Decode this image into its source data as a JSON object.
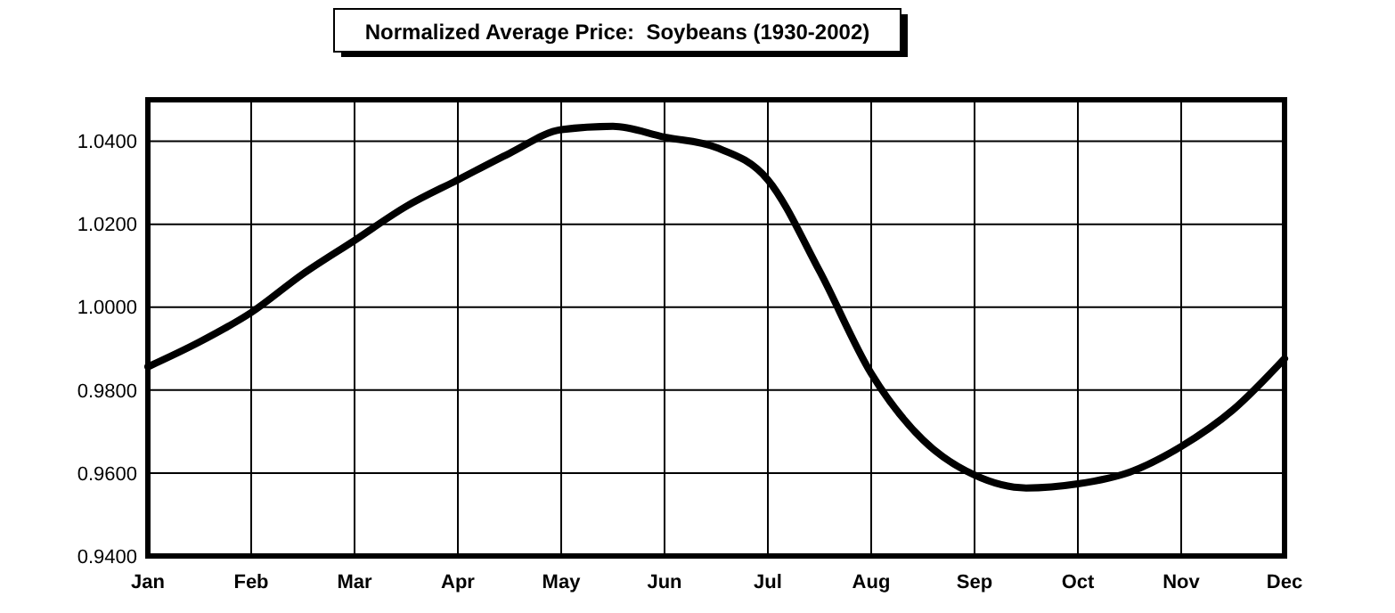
{
  "chart_data": {
    "type": "line",
    "title": "Normalized Average Price:  Soybeans (1930-2002)",
    "categories": [
      "Jan",
      null,
      "Feb",
      null,
      "Mar",
      null,
      "Apr",
      null,
      "May",
      null,
      "Jun",
      null,
      "Jul",
      null,
      "Aug",
      null,
      "Sep",
      null,
      "Oct",
      null,
      "Nov",
      null,
      "Dec"
    ],
    "series": [
      {
        "color": "#000000",
        "values": [
          0.9856,
          0.9916,
          0.9987,
          1.008,
          1.0161,
          1.0243,
          1.0307,
          1.0371,
          1.0428,
          1.0436,
          1.041,
          1.0385,
          1.0307,
          1.0087,
          0.984,
          0.968,
          0.9595,
          0.9564,
          0.9574,
          0.9602,
          0.9664,
          0.9752,
          0.9876
        ]
      }
    ],
    "ylim": [
      0.94,
      1.05
    ],
    "yticks": [
      {
        "value": 0.94,
        "label": "0.9400"
      },
      {
        "value": 0.96,
        "label": "0.9600"
      },
      {
        "value": 0.98,
        "label": "0.9800"
      },
      {
        "value": 1,
        "label": "1.0000"
      },
      {
        "value": 1.02,
        "label": "1.0200"
      },
      {
        "value": 1.04,
        "label": "1.0400"
      }
    ],
    "grid": true,
    "line_style": "solid",
    "marker": "none"
  }
}
